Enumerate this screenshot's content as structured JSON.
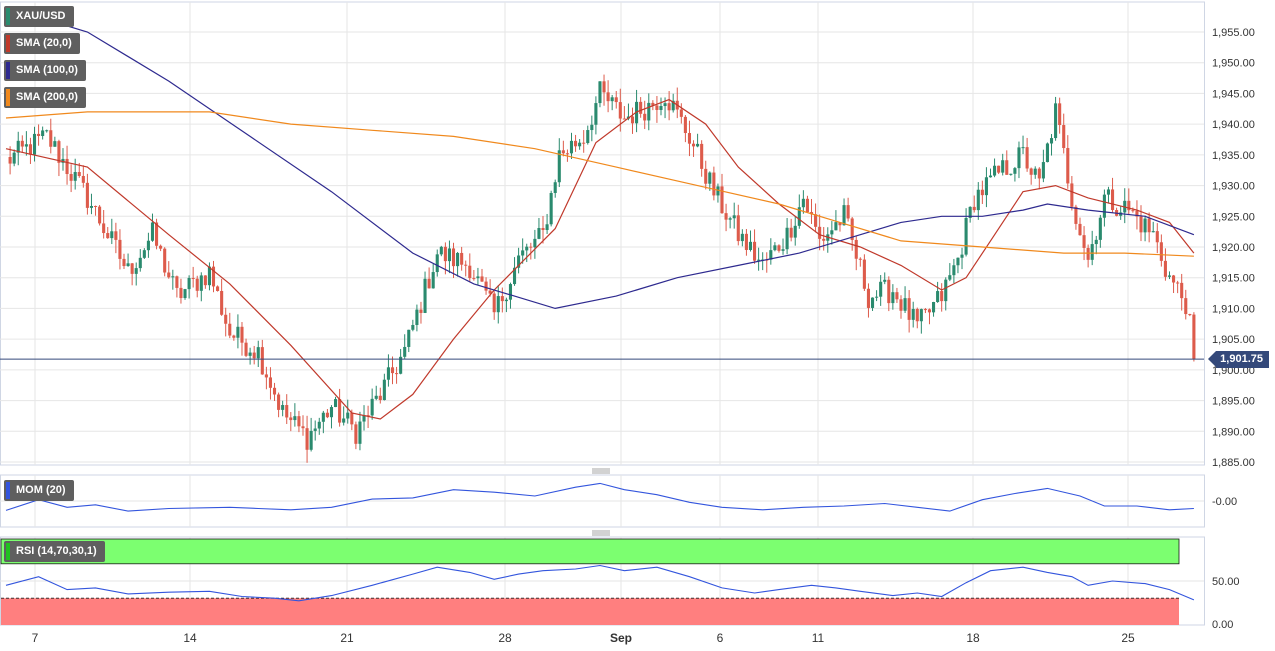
{
  "legend": {
    "symbol": "XAU/USD",
    "sma20": "SMA (20,0)",
    "sma100": "SMA (100,0)",
    "sma200": "SMA (200,0)",
    "mom": "MOM (20)",
    "rsi": "RSI (14,70,30,1)"
  },
  "price_tag": "1,901.75",
  "colors": {
    "up": "#2a8a6e",
    "down": "#dd5b4b",
    "sma20": "#c0392b",
    "sma100": "#2e2a8f",
    "sma200": "#f0891d",
    "mom_line": "#3355dd",
    "rsi_line": "#3355dd",
    "rsi_overbought": "#7cff70",
    "rsi_oversold": "#ff7f7f",
    "price_line": "#34497a",
    "grid": "#e6e6e6"
  },
  "chart_data": [
    {
      "type": "candlestick",
      "title": "XAU/USD",
      "x_ticks": [
        "7",
        "14",
        "21",
        "28",
        "Sep",
        "6",
        "11",
        "18",
        "25"
      ],
      "y_ticks": [
        "1,955.00",
        "1,950.00",
        "1,945.00",
        "1,940.00",
        "1,935.00",
        "1,930.00",
        "1,925.00",
        "1,920.00",
        "1,915.00",
        "1,910.00",
        "1,905.00",
        "1,900.00",
        "1,895.00",
        "1,890.00",
        "1,885.00"
      ],
      "ylim": [
        1884,
        1960
      ],
      "last_price": 1901.75,
      "grid": true,
      "anchors": [
        {
          "x": 0,
          "close": 1934
        },
        {
          "x": 10,
          "close": 1938
        },
        {
          "x": 20,
          "close": 1928
        },
        {
          "x": 30,
          "close": 1916
        },
        {
          "x": 36,
          "close": 1922
        },
        {
          "x": 42,
          "close": 1912
        },
        {
          "x": 50,
          "close": 1916
        },
        {
          "x": 55,
          "close": 1906
        },
        {
          "x": 62,
          "close": 1903
        },
        {
          "x": 68,
          "close": 1893
        },
        {
          "x": 74,
          "close": 1889
        },
        {
          "x": 80,
          "close": 1894
        },
        {
          "x": 86,
          "close": 1890
        },
        {
          "x": 92,
          "close": 1896
        },
        {
          "x": 98,
          "close": 1903
        },
        {
          "x": 106,
          "close": 1919
        },
        {
          "x": 114,
          "close": 1917
        },
        {
          "x": 120,
          "close": 1909
        },
        {
          "x": 126,
          "close": 1918
        },
        {
          "x": 132,
          "close": 1922
        },
        {
          "x": 136,
          "close": 1935
        },
        {
          "x": 142,
          "close": 1938
        },
        {
          "x": 146,
          "close": 1945
        },
        {
          "x": 152,
          "close": 1941
        },
        {
          "x": 158,
          "close": 1943
        },
        {
          "x": 162,
          "close": 1945
        },
        {
          "x": 168,
          "close": 1938
        },
        {
          "x": 174,
          "close": 1929
        },
        {
          "x": 180,
          "close": 1922
        },
        {
          "x": 186,
          "close": 1917
        },
        {
          "x": 192,
          "close": 1922
        },
        {
          "x": 196,
          "close": 1928
        },
        {
          "x": 200,
          "close": 1921
        },
        {
          "x": 206,
          "close": 1925
        },
        {
          "x": 212,
          "close": 1912
        },
        {
          "x": 218,
          "close": 1913
        },
        {
          "x": 224,
          "close": 1907
        },
        {
          "x": 230,
          "close": 1912
        },
        {
          "x": 234,
          "close": 1918
        },
        {
          "x": 238,
          "close": 1928
        },
        {
          "x": 244,
          "close": 1932
        },
        {
          "x": 250,
          "close": 1935
        },
        {
          "x": 254,
          "close": 1930
        },
        {
          "x": 258,
          "close": 1942
        },
        {
          "x": 262,
          "close": 1928
        },
        {
          "x": 266,
          "close": 1918
        },
        {
          "x": 270,
          "close": 1928
        },
        {
          "x": 276,
          "close": 1926
        },
        {
          "x": 282,
          "close": 1922
        },
        {
          "x": 286,
          "close": 1915
        },
        {
          "x": 290,
          "close": 1911
        },
        {
          "x": 292,
          "close": 1902
        }
      ],
      "series": [
        {
          "name": "SMA (20,0)",
          "points": [
            [
              0,
              1936
            ],
            [
              20,
              1933
            ],
            [
              40,
              1922
            ],
            [
              55,
              1914
            ],
            [
              70,
              1904
            ],
            [
              85,
              1893
            ],
            [
              92,
              1892
            ],
            [
              100,
              1896
            ],
            [
              110,
              1905
            ],
            [
              120,
              1913
            ],
            [
              135,
              1923
            ],
            [
              145,
              1937
            ],
            [
              155,
              1942
            ],
            [
              163,
              1944
            ],
            [
              172,
              1940
            ],
            [
              180,
              1933
            ],
            [
              190,
              1927
            ],
            [
              200,
              1922
            ],
            [
              210,
              1920
            ],
            [
              220,
              1917
            ],
            [
              230,
              1913
            ],
            [
              236,
              1915
            ],
            [
              242,
              1921
            ],
            [
              250,
              1929
            ],
            [
              258,
              1930
            ],
            [
              266,
              1928
            ],
            [
              278,
              1926
            ],
            [
              286,
              1924
            ],
            [
              292,
              1919
            ]
          ]
        },
        {
          "name": "SMA (100,0)",
          "points": [
            [
              0,
              1959
            ],
            [
              20,
              1955
            ],
            [
              40,
              1947
            ],
            [
              60,
              1938
            ],
            [
              80,
              1929
            ],
            [
              100,
              1919
            ],
            [
              115,
              1914
            ],
            [
              125,
              1912
            ],
            [
              135,
              1910
            ],
            [
              150,
              1912
            ],
            [
              165,
              1915
            ],
            [
              180,
              1917
            ],
            [
              195,
              1919
            ],
            [
              210,
              1922
            ],
            [
              220,
              1924
            ],
            [
              230,
              1925
            ],
            [
              240,
              1925
            ],
            [
              250,
              1926
            ],
            [
              256,
              1927
            ],
            [
              266,
              1926
            ],
            [
              280,
              1925
            ],
            [
              292,
              1922
            ]
          ]
        },
        {
          "name": "SMA (200,0)",
          "points": [
            [
              0,
              1941
            ],
            [
              20,
              1942
            ],
            [
              40,
              1942
            ],
            [
              50,
              1942
            ],
            [
              70,
              1940
            ],
            [
              90,
              1939
            ],
            [
              110,
              1938
            ],
            [
              130,
              1936
            ],
            [
              150,
              1933
            ],
            [
              170,
              1930
            ],
            [
              190,
              1927
            ],
            [
              205,
              1924
            ],
            [
              220,
              1921
            ],
            [
              240,
              1920
            ],
            [
              260,
              1919
            ],
            [
              275,
              1919
            ],
            [
              292,
              1918.5
            ]
          ]
        }
      ]
    },
    {
      "type": "line",
      "title": "MOM (20)",
      "y_ticks": [
        "-0.00"
      ],
      "ylim": [
        -35,
        35
      ],
      "points": [
        [
          0,
          -15
        ],
        [
          8,
          2
        ],
        [
          15,
          -10
        ],
        [
          22,
          -6
        ],
        [
          30,
          -16
        ],
        [
          40,
          -12
        ],
        [
          55,
          -10
        ],
        [
          62,
          -12
        ],
        [
          70,
          -14
        ],
        [
          80,
          -10
        ],
        [
          90,
          3
        ],
        [
          100,
          5
        ],
        [
          110,
          18
        ],
        [
          120,
          14
        ],
        [
          130,
          8
        ],
        [
          140,
          22
        ],
        [
          146,
          28
        ],
        [
          152,
          18
        ],
        [
          160,
          10
        ],
        [
          168,
          -2
        ],
        [
          176,
          -10
        ],
        [
          186,
          -14
        ],
        [
          196,
          -10
        ],
        [
          206,
          -8
        ],
        [
          216,
          -4
        ],
        [
          224,
          -10
        ],
        [
          232,
          -16
        ],
        [
          240,
          2
        ],
        [
          248,
          12
        ],
        [
          256,
          20
        ],
        [
          264,
          8
        ],
        [
          270,
          -8
        ],
        [
          278,
          -8
        ],
        [
          286,
          -14
        ],
        [
          292,
          -12
        ]
      ]
    },
    {
      "type": "line",
      "title": "RSI (14,70,30,1)",
      "y_ticks": [
        "50.00",
        "0.00"
      ],
      "ylim": [
        0,
        100
      ],
      "overbought": 70,
      "oversold": 30,
      "points": [
        [
          0,
          45
        ],
        [
          8,
          55
        ],
        [
          15,
          40
        ],
        [
          22,
          42
        ],
        [
          30,
          35
        ],
        [
          40,
          37
        ],
        [
          50,
          38
        ],
        [
          58,
          32
        ],
        [
          66,
          30
        ],
        [
          72,
          27
        ],
        [
          80,
          33
        ],
        [
          90,
          45
        ],
        [
          100,
          58
        ],
        [
          106,
          66
        ],
        [
          114,
          60
        ],
        [
          120,
          52
        ],
        [
          126,
          58
        ],
        [
          132,
          62
        ],
        [
          140,
          64
        ],
        [
          146,
          68
        ],
        [
          152,
          62
        ],
        [
          160,
          66
        ],
        [
          168,
          55
        ],
        [
          176,
          42
        ],
        [
          184,
          36
        ],
        [
          190,
          40
        ],
        [
          198,
          45
        ],
        [
          204,
          42
        ],
        [
          210,
          38
        ],
        [
          218,
          33
        ],
        [
          224,
          36
        ],
        [
          230,
          32
        ],
        [
          236,
          48
        ],
        [
          242,
          62
        ],
        [
          250,
          66
        ],
        [
          256,
          60
        ],
        [
          262,
          55
        ],
        [
          266,
          45
        ],
        [
          272,
          50
        ],
        [
          280,
          47
        ],
        [
          286,
          40
        ],
        [
          292,
          28
        ]
      ]
    }
  ]
}
